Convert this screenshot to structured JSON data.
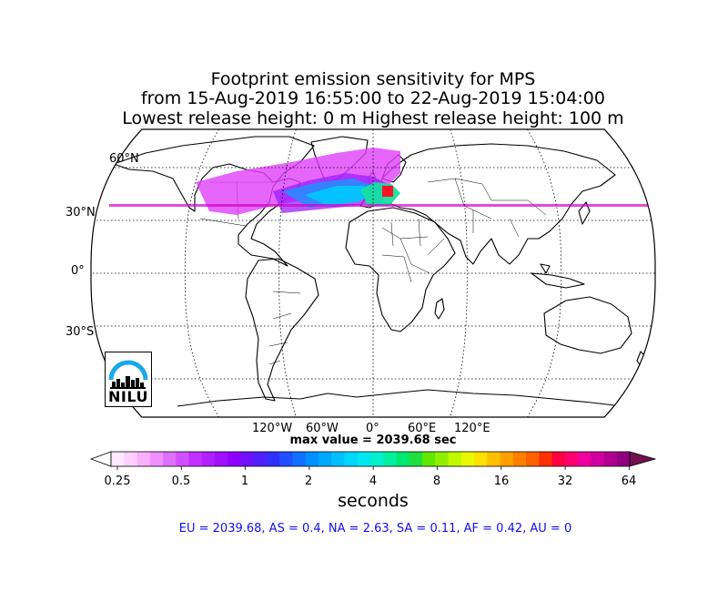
{
  "title": {
    "line1": "Footprint emission sensitivity for MPS",
    "line2": "from 15-Aug-2019 16:55:00 to 22-Aug-2019 15:04:00",
    "line3": "Lowest release height: 0 m       Highest release height: 100 m"
  },
  "map": {
    "projection": "robinson",
    "lat_labels": [
      "60°N",
      "30°N",
      "0°",
      "30°S"
    ],
    "lon_labels": [
      "120°W",
      "60°W",
      "0°",
      "60°E",
      "120°E"
    ],
    "gridlines": "dotted",
    "plume_colors": [
      "#e040fb",
      "#9b1fff",
      "#00c8ff",
      "#1e90ff",
      "#14e0a0",
      "#d600c8"
    ]
  },
  "max_value": "max value = 2039.68 sec",
  "colorbar": {
    "ticks": [
      "0.25",
      "0.5",
      "1",
      "2",
      "4",
      "8",
      "16",
      "32",
      "64"
    ],
    "label": "seconds",
    "colors": [
      "#ffe8ff",
      "#ffd0ff",
      "#f8b0ff",
      "#f090ff",
      "#e070ff",
      "#d050ff",
      "#c030ff",
      "#b020ff",
      "#a010ff",
      "#9000ff",
      "#7010ff",
      "#5020ff",
      "#3030ff",
      "#2050ff",
      "#1070ff",
      "#0090ff",
      "#00a8ff",
      "#00c0ff",
      "#00d8ff",
      "#00e8f0",
      "#00f0d0",
      "#00f0a0",
      "#00e870",
      "#20e040",
      "#60e800",
      "#90f000",
      "#c0f800",
      "#e8f800",
      "#ffe000",
      "#ffc000",
      "#ffa000",
      "#ff8000",
      "#ff6000",
      "#ff3000",
      "#ff0040",
      "#ff0070",
      "#f000a0",
      "#d000a0",
      "#b00090",
      "#900080"
    ],
    "under_color": "#ffffff",
    "over_color": "#701050"
  },
  "summary": "EU = 2039.68,  AS = 0.4,  NA = 2.63,  SA = 0.11,  AF = 0.42,  AU = 0",
  "logo": {
    "text": "NILU"
  }
}
